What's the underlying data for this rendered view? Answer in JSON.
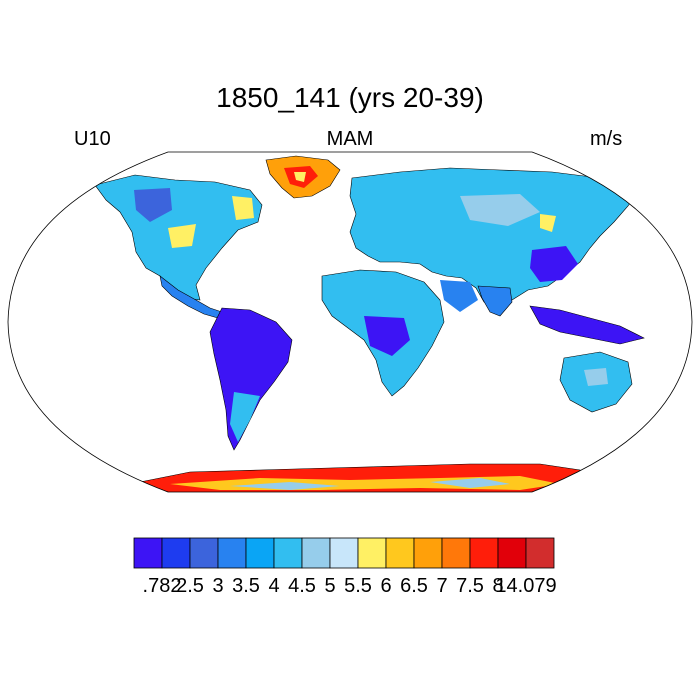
{
  "title": "1850_141 (yrs 20-39)",
  "left_label": "U10",
  "center_label": "MAM",
  "right_label": "m/s",
  "colorbar": {
    "colors": [
      "#3d14f5",
      "#1e3cf0",
      "#3c64dc",
      "#2882f0",
      "#0aa5f5",
      "#32bef0",
      "#96cdeb",
      "#c8e6fa",
      "#fff064",
      "#ffc81e",
      "#ffa00a",
      "#ff780a",
      "#ff1e0a",
      "#e1000a",
      "#d22d2d"
    ],
    "labels": [
      ".782",
      "2.5",
      "3",
      "3.5",
      "4",
      "4.5",
      "5",
      "5.5",
      "6",
      "6.5",
      "7",
      "7.5",
      "8",
      "14.079"
    ]
  }
}
